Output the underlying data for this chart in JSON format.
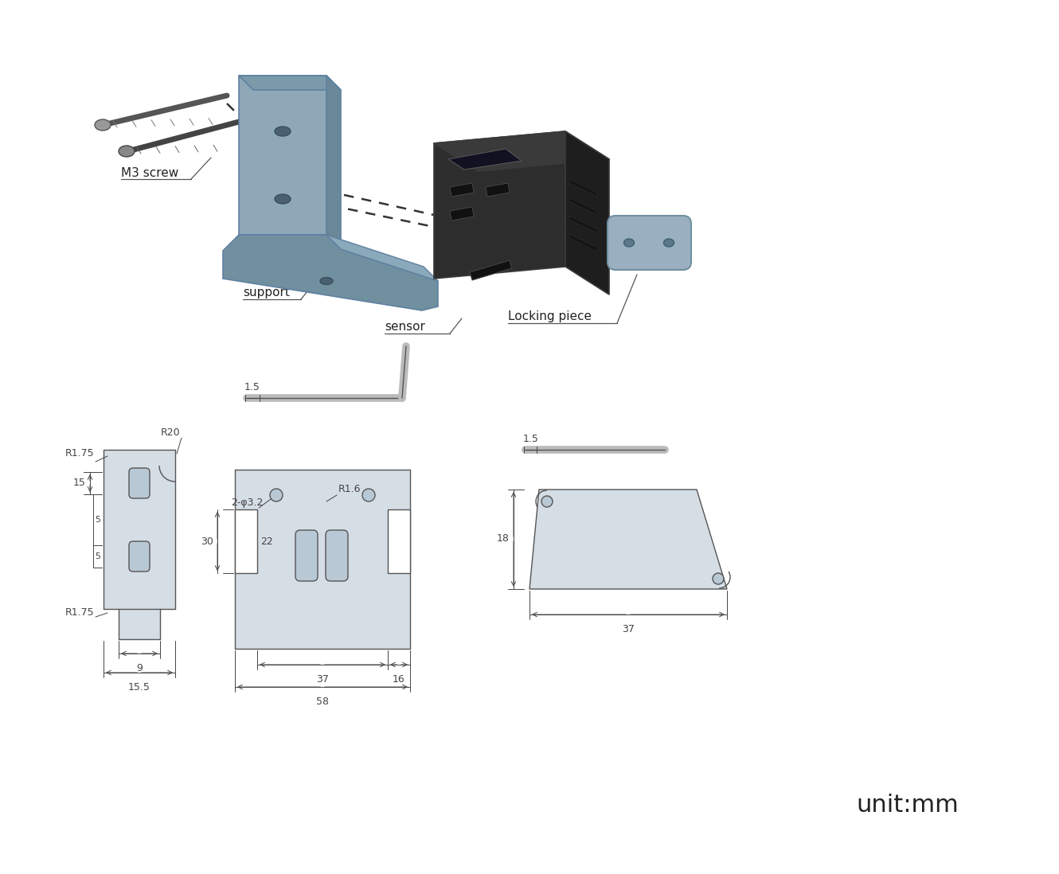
{
  "bg_color": "#ffffff",
  "line_color": "#555555",
  "fill_color": "#d0d8e0",
  "dark_fill": "#2a2a2a",
  "unit_text": "unit:mm",
  "labels": {
    "m3_screw": "M3 screw",
    "support": "support",
    "sensor": "sensor",
    "locking_piece": "Locking piece"
  },
  "dims_support_front": {
    "R1_75_top": "R1.75",
    "R20": "R20",
    "R1_75_bot": "R1.75",
    "h15": "15",
    "w9": "9",
    "w15_5": "15.5"
  },
  "dims_bracket": {
    "top_1_5": "1.5",
    "holes": "2-φ3.2",
    "R1_6": "R1.6",
    "h30": "30",
    "h22": "22",
    "w37": "37",
    "w16": "16",
    "w58": "58"
  },
  "dims_locking": {
    "top_1_5": "1.5",
    "h18": "18",
    "w37": "37"
  },
  "bracket_color": "#8fa8b8",
  "bracket_dark": "#6a8898",
  "bracket_edge": "#6080a0",
  "locking_color": "#9ab0c0",
  "sensor_color": "#2d2d2d",
  "screw_color1": "#888888",
  "screw_color2": "#666666",
  "drawing_fill": "#d5dde5",
  "drawing_hole": "#b8c8d4",
  "dim_color": "#444444",
  "dim_fontsize": 9,
  "label_fontsize": 11
}
